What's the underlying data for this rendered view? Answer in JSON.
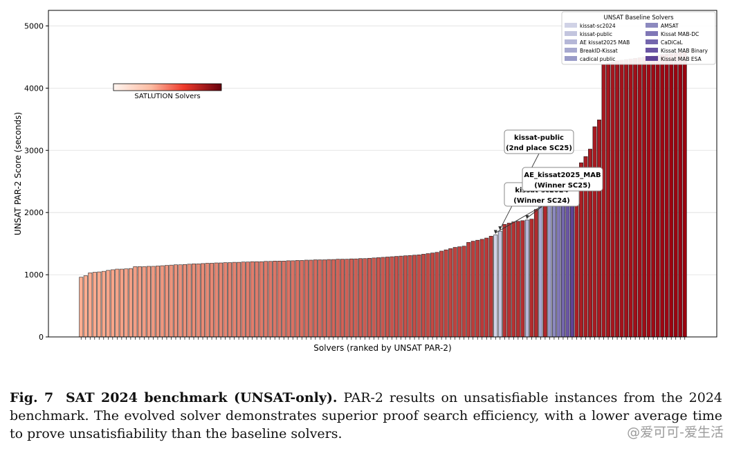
{
  "chart_data": {
    "type": "bar",
    "xlabel": "Solvers (ranked by UNSAT PAR-2)",
    "ylabel": "UNSAT PAR-2 Score (seconds)",
    "ylim": [
      0,
      5250
    ],
    "yticks": [
      0,
      1000,
      2000,
      3000,
      4000,
      5000
    ],
    "grid": "horizontal",
    "bars": [
      {
        "v": 960,
        "g": "s"
      },
      {
        "v": 985,
        "g": "s"
      },
      {
        "v": 1030,
        "g": "s"
      },
      {
        "v": 1040,
        "g": "s"
      },
      {
        "v": 1045,
        "g": "s"
      },
      {
        "v": 1055,
        "g": "s"
      },
      {
        "v": 1070,
        "g": "s"
      },
      {
        "v": 1080,
        "g": "s"
      },
      {
        "v": 1090,
        "g": "s"
      },
      {
        "v": 1090,
        "g": "s"
      },
      {
        "v": 1095,
        "g": "s"
      },
      {
        "v": 1100,
        "g": "s"
      },
      {
        "v": 1130,
        "g": "s"
      },
      {
        "v": 1130,
        "g": "s"
      },
      {
        "v": 1130,
        "g": "s"
      },
      {
        "v": 1135,
        "g": "s"
      },
      {
        "v": 1135,
        "g": "s"
      },
      {
        "v": 1140,
        "g": "s"
      },
      {
        "v": 1145,
        "g": "s"
      },
      {
        "v": 1150,
        "g": "s"
      },
      {
        "v": 1155,
        "g": "s"
      },
      {
        "v": 1160,
        "g": "s"
      },
      {
        "v": 1160,
        "g": "s"
      },
      {
        "v": 1165,
        "g": "s"
      },
      {
        "v": 1170,
        "g": "s"
      },
      {
        "v": 1175,
        "g": "s"
      },
      {
        "v": 1175,
        "g": "s"
      },
      {
        "v": 1180,
        "g": "s"
      },
      {
        "v": 1185,
        "g": "s"
      },
      {
        "v": 1185,
        "g": "s"
      },
      {
        "v": 1190,
        "g": "s"
      },
      {
        "v": 1190,
        "g": "s"
      },
      {
        "v": 1195,
        "g": "s"
      },
      {
        "v": 1195,
        "g": "s"
      },
      {
        "v": 1200,
        "g": "s"
      },
      {
        "v": 1200,
        "g": "s"
      },
      {
        "v": 1205,
        "g": "s"
      },
      {
        "v": 1205,
        "g": "s"
      },
      {
        "v": 1210,
        "g": "s"
      },
      {
        "v": 1210,
        "g": "s"
      },
      {
        "v": 1210,
        "g": "s"
      },
      {
        "v": 1215,
        "g": "s"
      },
      {
        "v": 1215,
        "g": "s"
      },
      {
        "v": 1220,
        "g": "s"
      },
      {
        "v": 1220,
        "g": "s"
      },
      {
        "v": 1220,
        "g": "s"
      },
      {
        "v": 1225,
        "g": "s"
      },
      {
        "v": 1225,
        "g": "s"
      },
      {
        "v": 1230,
        "g": "s"
      },
      {
        "v": 1230,
        "g": "s"
      },
      {
        "v": 1235,
        "g": "s"
      },
      {
        "v": 1235,
        "g": "s"
      },
      {
        "v": 1240,
        "g": "s"
      },
      {
        "v": 1240,
        "g": "s"
      },
      {
        "v": 1240,
        "g": "s"
      },
      {
        "v": 1245,
        "g": "s"
      },
      {
        "v": 1245,
        "g": "s"
      },
      {
        "v": 1250,
        "g": "s"
      },
      {
        "v": 1250,
        "g": "s"
      },
      {
        "v": 1250,
        "g": "s"
      },
      {
        "v": 1255,
        "g": "s"
      },
      {
        "v": 1255,
        "g": "s"
      },
      {
        "v": 1260,
        "g": "s"
      },
      {
        "v": 1260,
        "g": "s"
      },
      {
        "v": 1265,
        "g": "s"
      },
      {
        "v": 1270,
        "g": "s"
      },
      {
        "v": 1275,
        "g": "s"
      },
      {
        "v": 1280,
        "g": "s"
      },
      {
        "v": 1285,
        "g": "s"
      },
      {
        "v": 1290,
        "g": "s"
      },
      {
        "v": 1295,
        "g": "s"
      },
      {
        "v": 1300,
        "g": "s"
      },
      {
        "v": 1305,
        "g": "s"
      },
      {
        "v": 1310,
        "g": "s"
      },
      {
        "v": 1315,
        "g": "s"
      },
      {
        "v": 1320,
        "g": "s"
      },
      {
        "v": 1330,
        "g": "s"
      },
      {
        "v": 1340,
        "g": "s"
      },
      {
        "v": 1350,
        "g": "s"
      },
      {
        "v": 1360,
        "g": "s"
      },
      {
        "v": 1380,
        "g": "s"
      },
      {
        "v": 1400,
        "g": "s"
      },
      {
        "v": 1420,
        "g": "s"
      },
      {
        "v": 1440,
        "g": "s"
      },
      {
        "v": 1450,
        "g": "s"
      },
      {
        "v": 1460,
        "g": "s"
      },
      {
        "v": 1520,
        "g": "s"
      },
      {
        "v": 1540,
        "g": "s"
      },
      {
        "v": 1555,
        "g": "s"
      },
      {
        "v": 1570,
        "g": "s"
      },
      {
        "v": 1590,
        "g": "s"
      },
      {
        "v": 1620,
        "g": "s"
      },
      {
        "v": 1640,
        "g": "b",
        "name": "kissat-sc2024"
      },
      {
        "v": 1700,
        "g": "b",
        "name": "kissat-public"
      },
      {
        "v": 1810,
        "g": "s"
      },
      {
        "v": 1830,
        "g": "s"
      },
      {
        "v": 1850,
        "g": "s"
      },
      {
        "v": 1860,
        "g": "s"
      },
      {
        "v": 1870,
        "g": "s"
      },
      {
        "v": 1880,
        "g": "b",
        "name": "AE kissat2025 MAB"
      },
      {
        "v": 1895,
        "g": "s"
      },
      {
        "v": 2050,
        "g": "s"
      },
      {
        "v": 2110,
        "g": "b",
        "name": "BreakID-Kissat"
      },
      {
        "v": 2400,
        "g": "s"
      },
      {
        "v": 2450,
        "g": "b",
        "name": "cadical public"
      },
      {
        "v": 2500,
        "g": "b",
        "name": "AMSAT"
      },
      {
        "v": 2550,
        "g": "b",
        "name": "Kissat MAB-DC"
      },
      {
        "v": 2600,
        "g": "b",
        "name": "CaDiCaL"
      },
      {
        "v": 2620,
        "g": "b",
        "name": "Kissat MAB Binary"
      },
      {
        "v": 2650,
        "g": "b",
        "name": "Kissat MAB ESA"
      },
      {
        "v": 2680,
        "g": "s"
      },
      {
        "v": 2800,
        "g": "s"
      },
      {
        "v": 2900,
        "g": "s"
      },
      {
        "v": 3020,
        "g": "s"
      },
      {
        "v": 3380,
        "g": "s"
      },
      {
        "v": 3490,
        "g": "s"
      },
      {
        "v": 4380,
        "g": "s"
      },
      {
        "v": 4400,
        "g": "s"
      },
      {
        "v": 4420,
        "g": "s"
      },
      {
        "v": 4440,
        "g": "s"
      },
      {
        "v": 4450,
        "g": "s"
      },
      {
        "v": 4460,
        "g": "s"
      },
      {
        "v": 4470,
        "g": "s"
      },
      {
        "v": 4480,
        "g": "s"
      },
      {
        "v": 4490,
        "g": "s"
      },
      {
        "v": 4500,
        "g": "s"
      },
      {
        "v": 4510,
        "g": "s"
      },
      {
        "v": 4520,
        "g": "s"
      },
      {
        "v": 4530,
        "g": "s"
      },
      {
        "v": 4540,
        "g": "s"
      },
      {
        "v": 4550,
        "g": "s"
      },
      {
        "v": 4560,
        "g": "s"
      },
      {
        "v": 4570,
        "g": "s"
      },
      {
        "v": 4580,
        "g": "s"
      },
      {
        "v": 4590,
        "g": "s"
      }
    ],
    "satlution_colorbar_label": "SATLUTION Solvers",
    "legend": {
      "title": "UNSAT Baseline Solvers",
      "placement": "top-right",
      "items": [
        {
          "label": "kissat-sc2024",
          "color": "#d0d2e6"
        },
        {
          "label": "kissat-public",
          "color": "#c3c5de"
        },
        {
          "label": "AE kissat2025 MAB",
          "color": "#b5b7d7"
        },
        {
          "label": "BreakID-Kissat",
          "color": "#a7a9cf"
        },
        {
          "label": "cadical public",
          "color": "#999bc8"
        },
        {
          "label": "AMSAT",
          "color": "#8c89bf"
        },
        {
          "label": "Kissat MAB-DC",
          "color": "#8077b6"
        },
        {
          "label": "CaDiCaL",
          "color": "#7466ad"
        },
        {
          "label": "Kissat MAB Binary",
          "color": "#6a55a3"
        },
        {
          "label": "Kissat MAB ESA",
          "color": "#5e4396"
        }
      ]
    },
    "annotations": [
      {
        "line1": "kissat-public",
        "line2": "(2nd place SC25)",
        "target": "kissat-public"
      },
      {
        "line1": "AE_kissat2025_MAB",
        "line2": "(Winner SC25)",
        "target": "AE kissat2025 MAB"
      },
      {
        "line1": "kissat-sc2024",
        "line2": "(Winner SC24)",
        "target": "kissat-sc2024"
      }
    ]
  },
  "caption": {
    "label": "Fig. 7",
    "title": "SAT 2024 benchmark (UNSAT-only).",
    "text": "PAR-2 results on unsatisfiable instances from the 2024 benchmark. The evolved solver demonstrates superior proof search efficiency, with a lower average time to prove unsatisfiability than the baseline solvers."
  },
  "watermark": "@爱可可-爱生活",
  "colors": {
    "satlution_low": "#fcae91",
    "satlution_high": "#99000d",
    "axis": "#000000",
    "grid": "#dddddd"
  }
}
